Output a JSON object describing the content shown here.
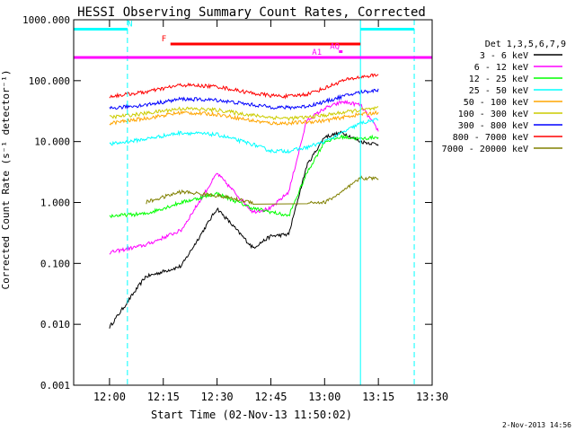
{
  "chart_data": {
    "type": "line",
    "title": "HESSI Observing Summary Count Rates, Corrected",
    "xlabel": "Start Time (02-Nov-13 11:50:02)",
    "ylabel": "Corrected Count Rate (s⁻¹ detector⁻¹)",
    "yscale": "log",
    "xlim": [
      "11:50",
      "13:30"
    ],
    "ylim": [
      0.001,
      1000
    ],
    "x_ticks": [
      "12:00",
      "12:15",
      "12:30",
      "12:45",
      "13:00",
      "13:15",
      "13:30"
    ],
    "y_ticks": [
      "0.001",
      "0.010",
      "0.100",
      "1.000",
      "10.000",
      "100.000",
      "1000.000"
    ],
    "legend_title": "Det 1,3,5,6,7,9",
    "legend_position": "right",
    "timestamp": "2-Nov-2013 14:56",
    "data_start": "12:00",
    "data_end": "13:15",
    "x": [
      "12:00",
      "12:10",
      "12:20",
      "12:30",
      "12:40",
      "12:45",
      "12:50",
      "12:55",
      "13:00",
      "13:05",
      "13:10",
      "13:15"
    ],
    "series": [
      {
        "name": "3 - 6 keV",
        "color": "#000000",
        "values": [
          0.009,
          0.06,
          0.09,
          0.8,
          0.18,
          0.28,
          0.3,
          4.0,
          12.0,
          14.0,
          10.0,
          9.0
        ]
      },
      {
        "name": "6 - 12 keV",
        "color": "#ff00ff",
        "values": [
          0.15,
          0.2,
          0.35,
          3.0,
          0.7,
          0.8,
          1.5,
          22.0,
          35.0,
          45.0,
          40.0,
          15.0
        ]
      },
      {
        "name": "12 - 25 keV",
        "color": "#00ff00",
        "values": [
          0.6,
          0.65,
          1.0,
          1.4,
          0.8,
          0.7,
          0.6,
          3.0,
          10.0,
          12.0,
          11.0,
          12.0
        ]
      },
      {
        "name": "25 - 50 keV",
        "color": "#00ffff",
        "values": [
          9.0,
          11.0,
          14.0,
          13.0,
          9.0,
          7.0,
          7.0,
          8.0,
          10.0,
          14.0,
          20.0,
          23.0
        ]
      },
      {
        "name": "50 - 100 keV",
        "color": "#ffa500",
        "values": [
          20.0,
          24.0,
          30.0,
          28.0,
          22.0,
          20.0,
          20.0,
          21.0,
          22.0,
          25.0,
          28.0,
          30.0
        ]
      },
      {
        "name": "100 - 300 keV",
        "color": "#cccc00",
        "values": [
          25.0,
          29.0,
          35.0,
          33.0,
          27.0,
          25.0,
          24.0,
          25.0,
          27.0,
          30.0,
          33.0,
          35.0
        ]
      },
      {
        "name": "300 - 800 keV",
        "color": "#0000ff",
        "values": [
          35.0,
          40.0,
          50.0,
          48.0,
          40.0,
          37.0,
          36.0,
          38.0,
          45.0,
          55.0,
          65.0,
          70.0
        ]
      },
      {
        "name": "800 - 7000 keV",
        "color": "#ff0000",
        "values": [
          55.0,
          65.0,
          85.0,
          80.0,
          62.0,
          57.0,
          55.0,
          60.0,
          75.0,
          100.0,
          115.0,
          125.0
        ]
      },
      {
        "name": "7000 - 20000 keV",
        "color": "#808000",
        "values": [
          null,
          1.0,
          1.5,
          1.3,
          1.0,
          null,
          null,
          1.0,
          1.0,
          1.5,
          2.5,
          2.5
        ]
      }
    ],
    "flag_bars": [
      {
        "label": "N",
        "color": "#00ffff",
        "intervals": [
          [
            "11:50",
            "12:05"
          ],
          [
            "13:10",
            "13:25"
          ]
        ],
        "level": 700
      },
      {
        "label": "F",
        "color": "#ff0000",
        "intervals": [
          [
            "12:17",
            "13:10"
          ]
        ],
        "level": 400
      },
      {
        "label": "AQ",
        "color": "#ff00ff",
        "intervals": [
          [
            "13:04",
            "13:05"
          ]
        ],
        "level": 300
      },
      {
        "label": "A1",
        "color": "#ff00ff",
        "intervals": [
          [
            "11:50",
            "13:30"
          ]
        ],
        "level": 240
      }
    ],
    "vertical_lines": [
      {
        "time": "12:05",
        "color": "#00ffff",
        "style": "dashed"
      },
      {
        "time": "13:10",
        "color": "#00ffff",
        "style": "solid"
      },
      {
        "time": "13:25",
        "color": "#00ffff",
        "style": "dashed"
      }
    ]
  }
}
